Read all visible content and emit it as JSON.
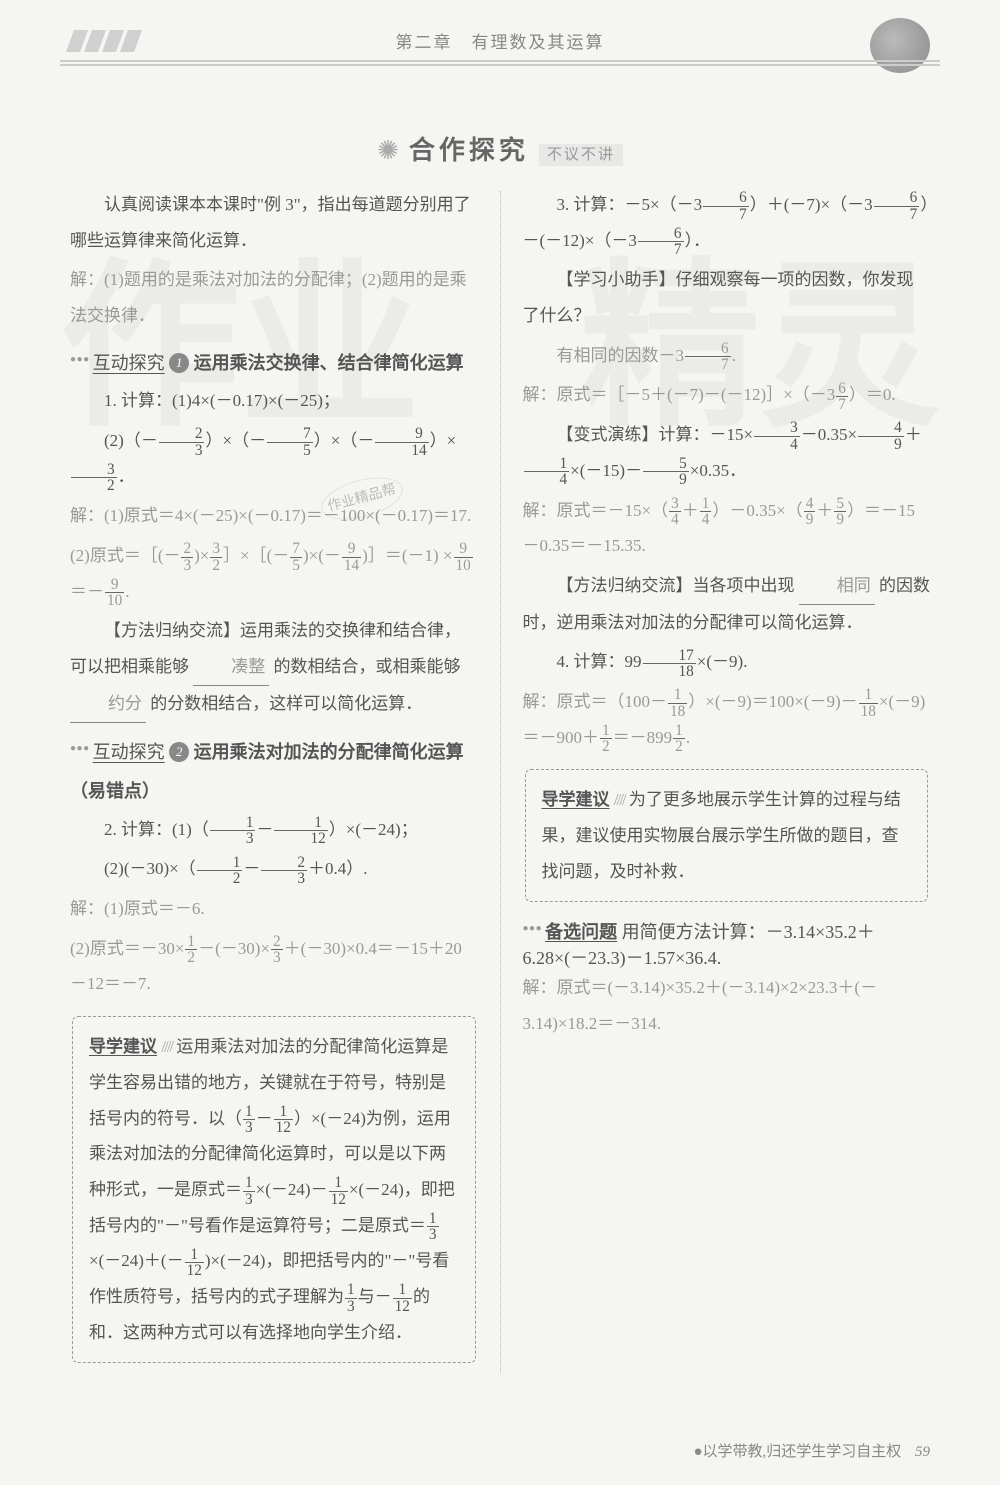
{
  "header": {
    "chapter": "第二章　有理数及其运算"
  },
  "section": {
    "main": "合作探究",
    "sub": "不议不讲"
  },
  "left": {
    "intro1": "认真阅读课本本课时\"例 3\"，指出每道题分别用了哪些运算律来简化运算．",
    "intro2": "解：(1)题用的是乘法对加法的分配律；(2)题用的是乘法交换律．",
    "sub1_label": "互动探究",
    "sub1_topic": "运用乘法交换律、结合律简化运算",
    "q1a": "1. 计算：(1)4×(－0.17)×(－25)；",
    "sol1a": "解：(1)原式＝4×(－25)×(－0.17)＝－100×(－0.17)＝17.",
    "method1a": "【方法归纳交流】运用乘法的交换律和结合律，可以把相乘能够",
    "method1b": "的数相结合，或相乘能够",
    "method1c": "的分数相结合，这样可以简化运算．",
    "blank1": "凑整",
    "blank2": "约分",
    "sub2_label": "互动探究",
    "sub2_topic": "运用乘法对加法的分配律简化运算（易错点）",
    "sol2a": "解：(1)原式＝－6.",
    "box1_title": "导学建议",
    "box1_end": "可以有选择地向学生介绍．"
  },
  "right": {
    "helper_title": "【学习小助手】",
    "helper_body": "仔细观察每一项的因数，你发现了什么？",
    "variant_title": "【变式演练】",
    "method2a": "【方法归纳交流】当各项中出现",
    "method2b": "的因数时，逆用乘法对加法的分配律可以简化运算．",
    "blank3": "相同",
    "box2_title": "导学建议",
    "box2_body": "为了更多地展示学生计算的过程与结果，建议使用实物展台展示学生所做的题目，查找问题，及时补救．",
    "alt_title": "备选问题",
    "alt_q": "用简便方法计算：－3.14×35.2＋6.28×(－23.3)－1.57×36.4.",
    "alt_sol": "解：原式＝(－3.14)×35.2＋(－3.14)×2×23.3＋(－3.14)×18.2＝－314."
  },
  "footer": {
    "slogan": "●以学带教,归还学生学习自主权",
    "page": "59"
  },
  "watermark1": "作业",
  "watermark2": "精灵",
  "stamp": "作业精品帮"
}
